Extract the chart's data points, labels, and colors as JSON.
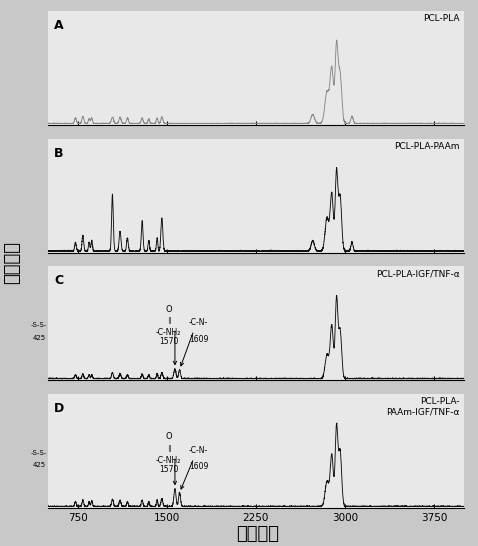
{
  "x_min": 500,
  "x_max": 4000,
  "x_ticks": [
    750,
    1500,
    2250,
    3000,
    3750
  ],
  "x_label": "拉曼位移",
  "y_label": "相对强度",
  "panel_labels": [
    "A",
    "B",
    "C",
    "D"
  ],
  "panel_titles": [
    "PCL-PLA",
    "PCL-PLA-PAAm",
    "PCL-PLA-IGF/TNF-α",
    "PCL-PLA-\nPAAm-IGF/TNF-α"
  ],
  "bg_color": "#e8e8e8",
  "line_color_A": "#888888",
  "line_color_BCD": "#111111",
  "fig_bg": "#c8c8c8"
}
